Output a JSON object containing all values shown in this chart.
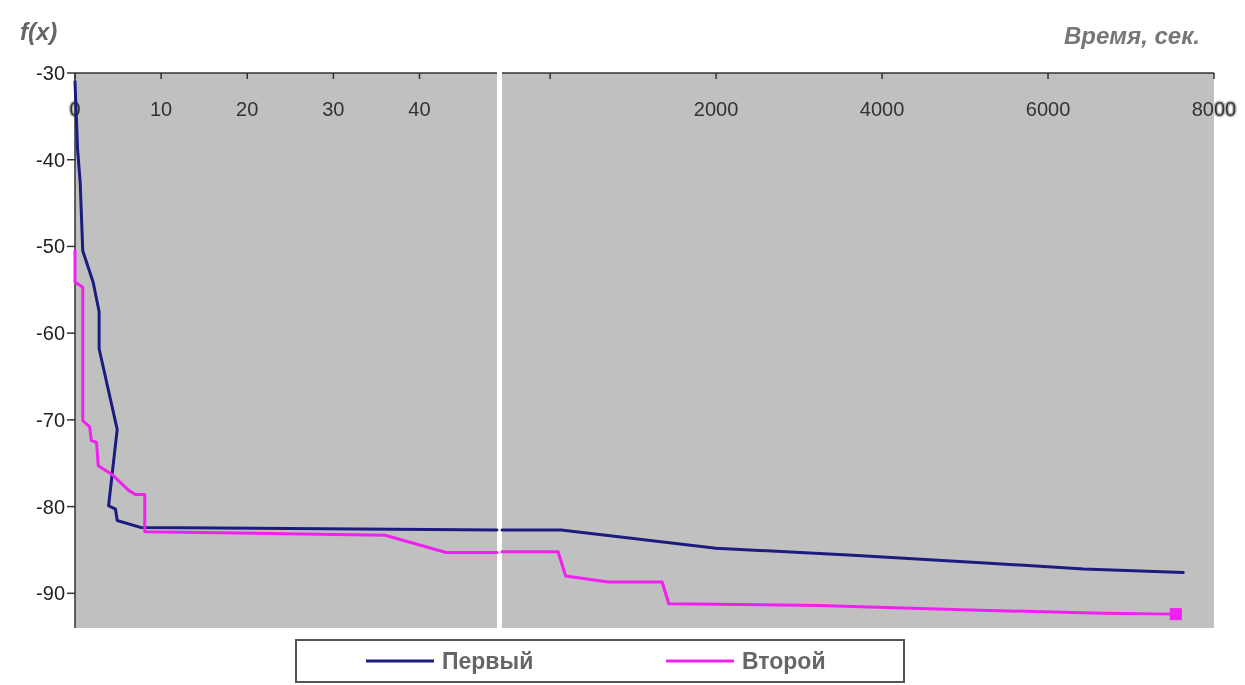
{
  "chart_data": [
    {
      "type": "line",
      "ylabel": "f(x)",
      "xlim": [
        0,
        49
      ],
      "xticks": [
        0,
        10,
        20,
        30,
        40
      ],
      "ylim": [
        -94,
        -30
      ],
      "yticks": [
        -30,
        -40,
        -50,
        -60,
        -70,
        -80,
        -90
      ],
      "legend": "bottom",
      "grid": false,
      "marker": "none",
      "line_style": "solid",
      "series": [
        {
          "name": "Первый",
          "color": "#1c1c80",
          "x": [
            0,
            0.3,
            0.6,
            0.9,
            2.1,
            2.8,
            2.8,
            4.9,
            3.9,
            4.7,
            4.9,
            7.6,
            49
          ],
          "values": [
            -31,
            -38.8,
            -42.6,
            -50.5,
            -54.1,
            -57.5,
            -61.8,
            -71.1,
            -79.9,
            -80.3,
            -81.6,
            -82.4,
            -82.7
          ]
        },
        {
          "name": "Второй",
          "color": "#f020f0",
          "x": [
            0,
            0,
            0.9,
            0.9,
            1.7,
            1.9,
            2.5,
            2.7,
            4.3,
            6.2,
            7,
            8.1,
            8.1,
            36,
            43.1,
            49
          ],
          "values": [
            -50.5,
            -54.1,
            -54.7,
            -70.1,
            -70.8,
            -72.4,
            -72.6,
            -75.3,
            -76.3,
            -78.1,
            -78.6,
            -78.6,
            -82.9,
            -83.3,
            -85.3,
            -85.3
          ]
        }
      ]
    },
    {
      "type": "line",
      "xlabel": "Время, сек.",
      "xlim": [
        -580,
        8000
      ],
      "xticks": [
        {
          "value": 0,
          "label": null
        },
        2000,
        4000,
        6000,
        8000
      ],
      "ylim": [
        -94,
        -30
      ],
      "yticks": [
        -30,
        -40,
        -50,
        -60,
        -70,
        -80,
        -90
      ],
      "tick_labels": "x",
      "grid": false,
      "marker": "none",
      "line_style": "solid",
      "series": [
        {
          "color": "#1c1c80",
          "x": [
            -580,
            133,
            2000,
            3650,
            5240,
            6430,
            7630
          ],
          "values": [
            -82.7,
            -82.7,
            -84.8,
            -85.6,
            -86.5,
            -87.2,
            -87.6
          ]
        },
        {
          "color": "#f020f0",
          "x": [
            -580,
            96,
            187,
            700,
            1350,
            1430,
            3250,
            4960,
            6660,
            7540
          ],
          "values": [
            -85.2,
            -85.2,
            -88,
            -88.7,
            -88.7,
            -91.2,
            -91.4,
            -91.9,
            -92.3,
            -92.4
          ]
        },
        {
          "type": "scatter",
          "color": "#f020f0",
          "marker": "square",
          "x": [
            7540
          ],
          "values": [
            -92.4
          ]
        }
      ]
    }
  ]
}
